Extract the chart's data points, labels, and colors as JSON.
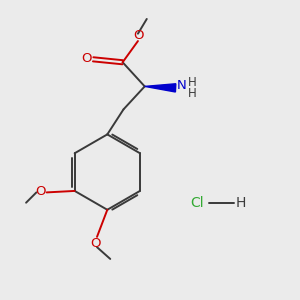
{
  "background_color": "#ebebeb",
  "bond_color": "#3a3a3a",
  "oxygen_color": "#cc0000",
  "nitrogen_color": "#0000cc",
  "green_color": "#33aa33",
  "text_color": "#3a3a3a",
  "figsize": [
    3.0,
    3.0
  ],
  "dpi": 100,
  "xlim": [
    0,
    10
  ],
  "ylim": [
    0,
    10
  ]
}
